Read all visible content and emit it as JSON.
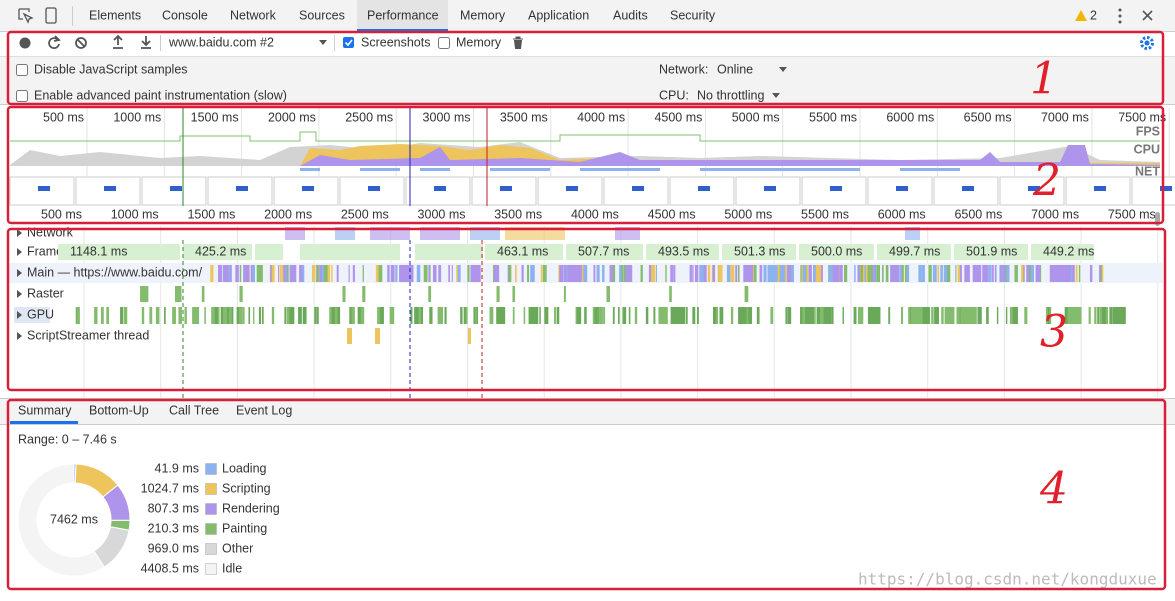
{
  "tabs": [
    "Elements",
    "Console",
    "Network",
    "Sources",
    "Performance",
    "Memory",
    "Application",
    "Audits",
    "Security"
  ],
  "warnings": "2",
  "toolbar": {
    "target": "www.baidu.com #2",
    "screenshots": "Screenshots",
    "memory": "Memory"
  },
  "settings": {
    "disable_js": "Disable JavaScript samples",
    "paint": "Enable advanced paint instrumentation (slow)",
    "network_label": "Network:",
    "network_value": "Online",
    "cpu_label": "CPU:",
    "cpu_value": "No throttling"
  },
  "overview": {
    "ruler_top": [
      "500 ms",
      "1000 ms",
      "1500 ms",
      "2000 ms",
      "2500 ms",
      "3000 ms",
      "3500 ms",
      "4000 ms",
      "4500 ms",
      "5000 ms",
      "5500 ms",
      "6000 ms",
      "6500 ms",
      "7000 ms",
      "7500 ms"
    ],
    "ruler_bottom": [
      "500 ms",
      "1000 ms",
      "1500 ms",
      "2000 ms",
      "2500 ms",
      "3000 ms",
      "3500 ms",
      "4000 ms",
      "4500 ms",
      "5000 ms",
      "5500 ms",
      "6000 ms",
      "6500 ms",
      "7000 ms",
      "7500 ms"
    ],
    "lanes": [
      "FPS",
      "CPU",
      "NET"
    ]
  },
  "tracks": [
    "Network",
    "Frames",
    "Main — https://www.baidu.com/",
    "Raster",
    "GPU",
    "ScriptStreamer thread"
  ],
  "frames": [
    "1148.1 ms",
    "425.2 ms",
    "463.1 ms",
    "507.7 ms",
    "493.5 ms",
    "501.3 ms",
    "500.0 ms",
    "499.7 ms",
    "501.9 ms",
    "449.2 ms"
  ],
  "details": {
    "tabs": [
      "Summary",
      "Bottom-Up",
      "Call Tree",
      "Event Log"
    ],
    "range": "Range: 0 – 7.46 s",
    "total": "7462 ms",
    "categories": [
      {
        "name": "Loading",
        "value": 41.9,
        "value_label": "41.9 ms",
        "color": "#8cb2ef"
      },
      {
        "name": "Scripting",
        "value": 1024.7,
        "value_label": "1024.7 ms",
        "color": "#eec55d"
      },
      {
        "name": "Rendering",
        "value": 807.3,
        "value_label": "807.3 ms",
        "color": "#ae94ea"
      },
      {
        "name": "Painting",
        "value": 210.3,
        "value_label": "210.3 ms",
        "color": "#83bc6c"
      },
      {
        "name": "Other",
        "value": 969.0,
        "value_label": "969.0 ms",
        "color": "#d8d8d8"
      },
      {
        "name": "Idle",
        "value": 4408.5,
        "value_label": "4408.5 ms",
        "color": "#f4f4f4"
      }
    ]
  },
  "annotations": [
    "1",
    "2",
    "3",
    "4"
  ],
  "watermark": "https://blog.csdn.net/kongduxue"
}
